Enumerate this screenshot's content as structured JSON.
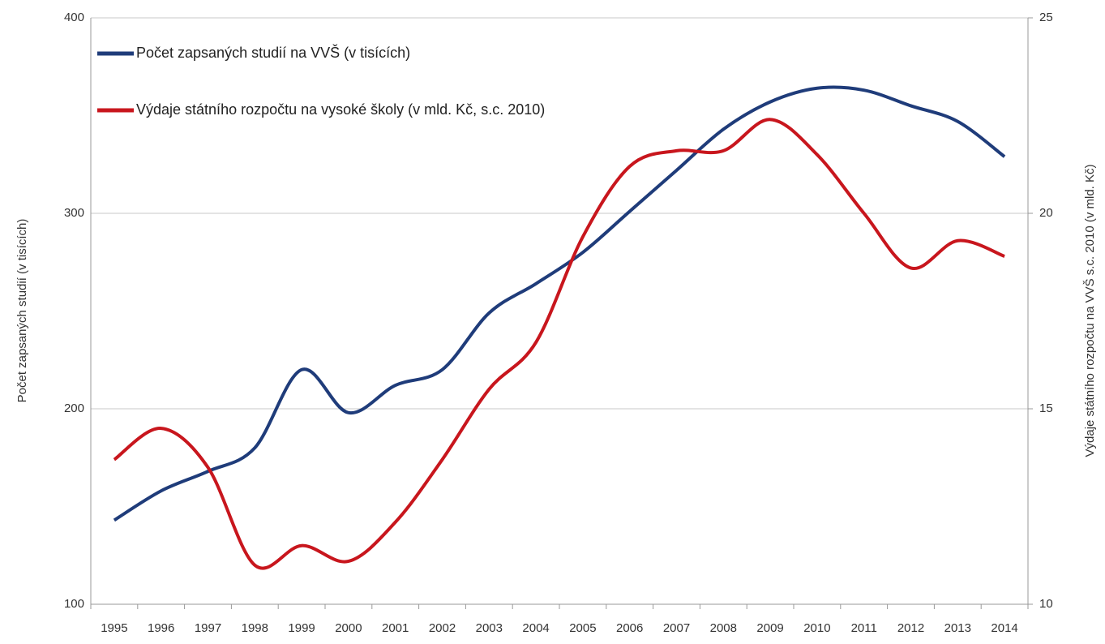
{
  "chart_data": {
    "type": "line",
    "categories": [
      "1995",
      "1996",
      "1997",
      "1998",
      "1999",
      "2000",
      "2001",
      "2002",
      "2003",
      "2004",
      "2005",
      "2006",
      "2007",
      "2008",
      "2009",
      "2010",
      "2011",
      "2012",
      "2013",
      "2014"
    ],
    "series": [
      {
        "name": "Počet zapsaných studií na VVŠ (v tisících)",
        "color": "#1f3c7a",
        "axis": "y",
        "values": [
          143,
          158,
          168,
          180,
          220,
          198,
          212,
          220,
          249,
          264,
          280,
          301,
          322,
          343,
          357,
          364,
          363,
          355,
          347,
          329
        ]
      },
      {
        "name": "Výdaje státního rozpočtu na vysoké školy (v mld. Kč, s.c. 2010)",
        "color": "#c8161d",
        "axis": "y2",
        "values": [
          13.7,
          14.5,
          13.5,
          11.0,
          11.5,
          11.1,
          12.1,
          13.7,
          15.5,
          16.7,
          19.4,
          21.2,
          21.6,
          21.6,
          22.4,
          21.5,
          20.0,
          18.6,
          19.3,
          18.9
        ]
      }
    ],
    "y_label": "Počet zapsaných studií (v tisících)",
    "y2_label": "Výdaje státního rozpočtu na VVŠ s.c. 2010 (v mld. Kč)",
    "ylim": [
      100,
      400
    ],
    "yticks": [
      100,
      200,
      300,
      400
    ],
    "y2lim": [
      10,
      25
    ],
    "y2ticks": [
      10,
      15,
      20,
      25
    ],
    "grid": true,
    "legend": "upper left"
  }
}
